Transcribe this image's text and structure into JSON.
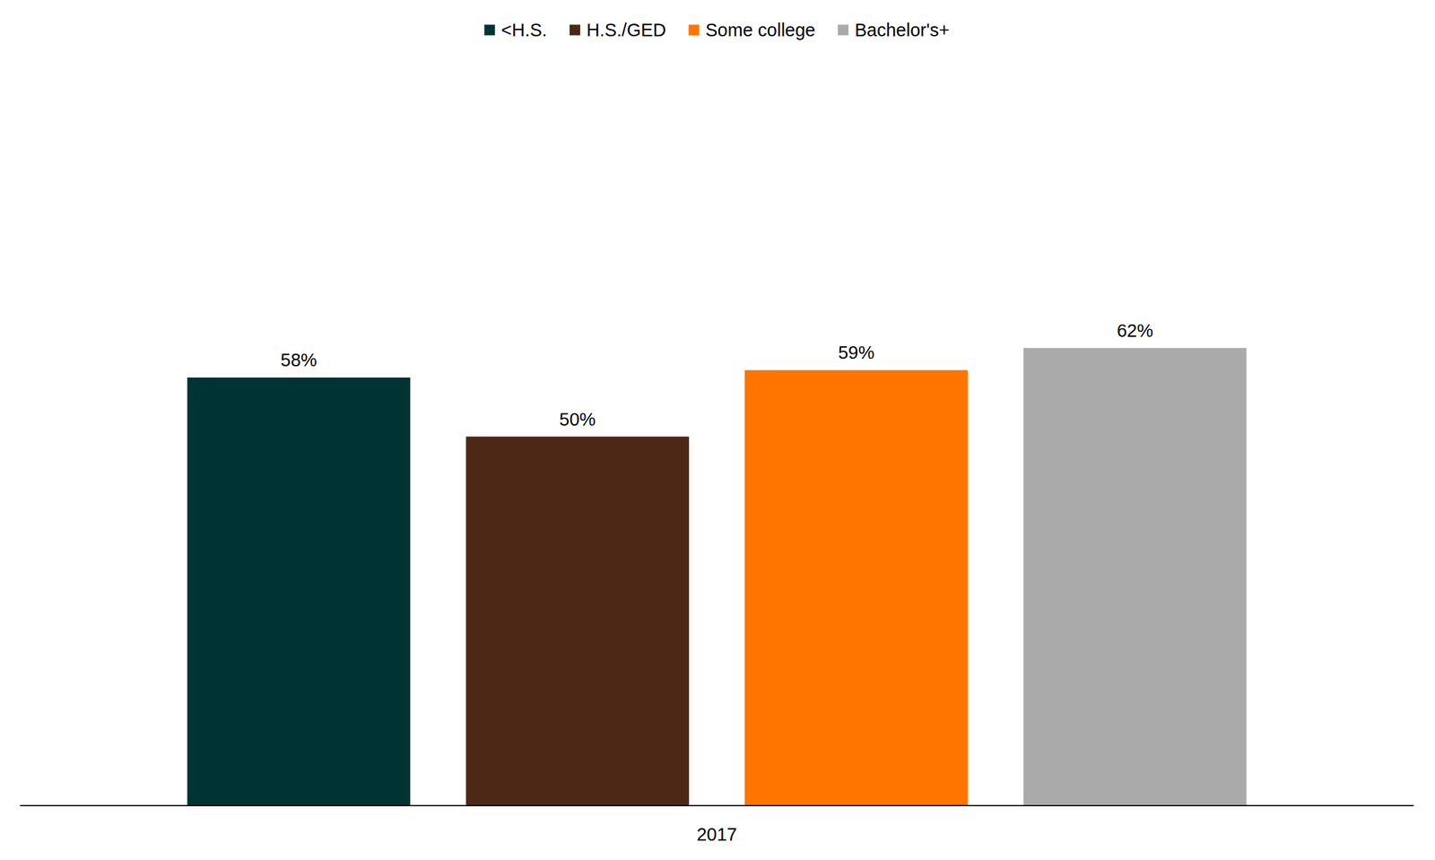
{
  "chart_data": {
    "type": "bar",
    "categories": [
      "2017"
    ],
    "series": [
      {
        "name": "<H.S.",
        "color": "#003333",
        "values": [
          58
        ],
        "value_labels": [
          "58%"
        ]
      },
      {
        "name": "H.S./GED",
        "color": "#4d2817",
        "values": [
          50
        ],
        "value_labels": [
          "50%"
        ]
      },
      {
        "name": "Some college",
        "color": "#ff7500",
        "values": [
          59
        ],
        "value_labels": [
          "59%"
        ]
      },
      {
        "name": "Bachelor's+",
        "color": "#aaaaaa",
        "values": [
          62
        ],
        "value_labels": [
          "62%"
        ]
      }
    ],
    "ylim": [
      0,
      100
    ],
    "data_labels": true,
    "legend": "top",
    "tick_labels": "x"
  }
}
